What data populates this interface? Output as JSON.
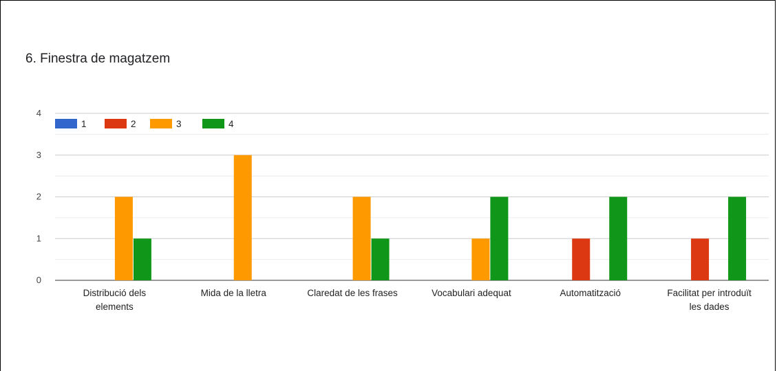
{
  "chart_data": {
    "type": "bar",
    "title": "6. Finestra de magatzem",
    "categories": [
      [
        "Distribució dels",
        "elements"
      ],
      [
        "Mida de la lletra"
      ],
      [
        "Claredat de les frases"
      ],
      [
        "Vocabulari adequat"
      ],
      [
        "Automatització"
      ],
      [
        "Facilitat per introduït",
        "les dades"
      ]
    ],
    "series": [
      {
        "name": "1",
        "color": "#3366cc",
        "values": [
          0,
          0,
          0,
          0,
          0,
          0
        ]
      },
      {
        "name": "2",
        "color": "#dc3912",
        "values": [
          0,
          0,
          0,
          0,
          1,
          1
        ]
      },
      {
        "name": "3",
        "color": "#ff9900",
        "values": [
          2,
          3,
          2,
          1,
          0,
          0
        ]
      },
      {
        "name": "4",
        "color": "#109618",
        "values": [
          1,
          0,
          1,
          2,
          2,
          2
        ]
      }
    ],
    "ylim": [
      0,
      4
    ],
    "yticks": [
      0,
      1,
      2,
      3,
      4
    ],
    "xlabel": "",
    "ylabel": "",
    "grid": true,
    "legend": "top-left"
  }
}
